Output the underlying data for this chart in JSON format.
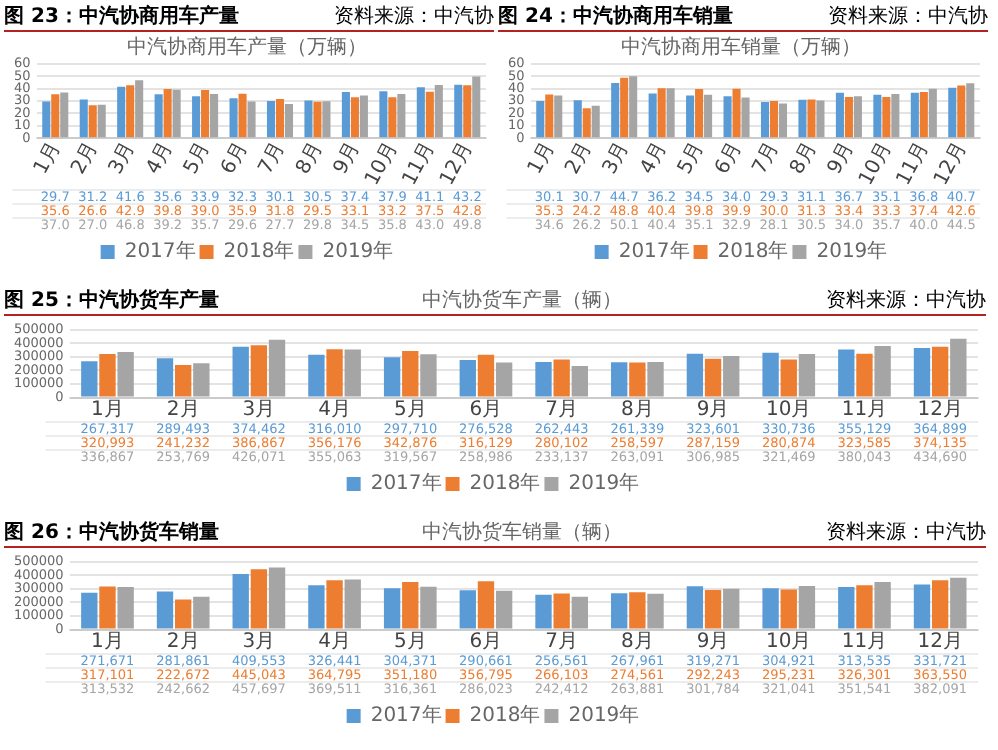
{
  "chart_data": [
    {
      "type": "bar",
      "title": "图 23：中汽协商用车产量",
      "subtitle": "中汽协商用车产量（万辆）",
      "categories": [
        "1月",
        "2月",
        "3月",
        "4月",
        "5月",
        "6月",
        "7月",
        "8月",
        "9月",
        "10月",
        "11月",
        "12月"
      ],
      "series": [
        {
          "name": "2017年",
          "color": "#5b9bd5",
          "values": [
            29.7,
            31.2,
            41.6,
            35.6,
            33.9,
            32.3,
            30.1,
            30.5,
            37.4,
            37.9,
            41.1,
            43.2
          ],
          "value_labels": [
            "29.7",
            "31.2",
            "41.6",
            "35.6",
            "33.9",
            "32.3",
            "30.1",
            "30.5",
            "37.4",
            "37.9",
            "41.1",
            "43.2"
          ]
        },
        {
          "name": "2018年",
          "color": "#ed7d31",
          "values": [
            35.6,
            26.6,
            42.9,
            39.8,
            39.0,
            35.9,
            31.8,
            29.5,
            33.1,
            33.2,
            37.5,
            42.8
          ],
          "value_labels": [
            "35.6",
            "26.6",
            "42.9",
            "39.8",
            "39.0",
            "35.9",
            "31.8",
            "29.5",
            "33.1",
            "33.2",
            "37.5",
            "42.8"
          ]
        },
        {
          "name": "2019年",
          "color": "#a5a5a5",
          "values": [
            37.0,
            27.0,
            46.8,
            39.2,
            35.7,
            29.6,
            27.7,
            29.8,
            34.5,
            35.8,
            43.0,
            49.8
          ],
          "value_labels": [
            "37.0",
            "27.0",
            "46.8",
            "39.2",
            "35.7",
            "29.6",
            "27.7",
            "29.8",
            "34.5",
            "35.8",
            "43.0",
            "49.8"
          ]
        }
      ],
      "ylim": [
        0,
        60
      ],
      "yticks": [
        0,
        10,
        20,
        30,
        40,
        50,
        60
      ],
      "grid": "y",
      "legend": "bottom",
      "annotations": [
        "资料来源：中汽协"
      ]
    },
    {
      "type": "bar",
      "title": "图 24：中汽协商用车销量",
      "subtitle": "中汽协商用车销量（万辆）",
      "categories": [
        "1月",
        "2月",
        "3月",
        "4月",
        "5月",
        "6月",
        "7月",
        "8月",
        "9月",
        "10月",
        "11月",
        "12月"
      ],
      "series": [
        {
          "name": "2017年",
          "color": "#5b9bd5",
          "values": [
            30.1,
            30.7,
            44.7,
            36.2,
            34.5,
            34.0,
            29.3,
            31.1,
            36.7,
            35.1,
            36.8,
            40.7
          ],
          "value_labels": [
            "30.1",
            "30.7",
            "44.7",
            "36.2",
            "34.5",
            "34.0",
            "29.3",
            "31.1",
            "36.7",
            "35.1",
            "36.8",
            "40.7"
          ]
        },
        {
          "name": "2018年",
          "color": "#ed7d31",
          "values": [
            35.3,
            24.2,
            48.8,
            40.4,
            39.8,
            39.9,
            30.0,
            31.3,
            33.4,
            33.3,
            37.4,
            42.6
          ],
          "value_labels": [
            "35.3",
            "24.2",
            "48.8",
            "40.4",
            "39.8",
            "39.9",
            "30.0",
            "31.3",
            "33.4",
            "33.3",
            "37.4",
            "42.6"
          ]
        },
        {
          "name": "2019年",
          "color": "#a5a5a5",
          "values": [
            34.6,
            26.2,
            50.1,
            40.4,
            35.1,
            32.9,
            28.1,
            30.5,
            34.0,
            35.7,
            40.0,
            44.5
          ],
          "value_labels": [
            "34.6",
            "26.2",
            "50.1",
            "40.4",
            "35.1",
            "32.9",
            "28.1",
            "30.5",
            "34.0",
            "35.7",
            "40.0",
            "44.5"
          ]
        }
      ],
      "ylim": [
        0,
        60
      ],
      "yticks": [
        0,
        10,
        20,
        30,
        40,
        50,
        60
      ],
      "grid": "y",
      "legend": "bottom",
      "annotations": [
        "资料来源：中汽协"
      ]
    },
    {
      "type": "bar",
      "title": "图 25：中汽协货车产量",
      "subtitle": "中汽协货车产量（辆）",
      "categories": [
        "1月",
        "2月",
        "3月",
        "4月",
        "5月",
        "6月",
        "7月",
        "8月",
        "9月",
        "10月",
        "11月",
        "12月"
      ],
      "series": [
        {
          "name": "2017年",
          "color": "#5b9bd5",
          "values": [
            267317,
            289493,
            374462,
            316010,
            297710,
            276528,
            262443,
            261339,
            323601,
            330736,
            355129,
            364899
          ],
          "value_labels": [
            "267,317",
            "289,493",
            "374,462",
            "316,010",
            "297,710",
            "276,528",
            "262,443",
            "261,339",
            "323,601",
            "330,736",
            "355,129",
            "364,899"
          ]
        },
        {
          "name": "2018年",
          "color": "#ed7d31",
          "values": [
            320993,
            241232,
            386867,
            356176,
            342876,
            316129,
            280102,
            258597,
            287159,
            280874,
            323585,
            374135
          ],
          "value_labels": [
            "320,993",
            "241,232",
            "386,867",
            "356,176",
            "342,876",
            "316,129",
            "280,102",
            "258,597",
            "287,159",
            "280,874",
            "323,585",
            "374,135"
          ]
        },
        {
          "name": "2019年",
          "color": "#a5a5a5",
          "values": [
            336867,
            253769,
            426071,
            355063,
            319567,
            258986,
            233137,
            263091,
            306985,
            321469,
            380043,
            434690
          ],
          "value_labels": [
            "336,867",
            "253,769",
            "426,071",
            "355,063",
            "319,567",
            "258,986",
            "233,137",
            "263,091",
            "306,985",
            "321,469",
            "380,043",
            "434,690"
          ]
        }
      ],
      "ylim": [
        0,
        500000
      ],
      "yticks": [
        0,
        100000,
        200000,
        300000,
        400000,
        500000
      ],
      "grid": "y",
      "legend": "bottom",
      "annotations": [
        "资料来源：中汽协"
      ]
    },
    {
      "type": "bar",
      "title": "图 26：中汽协货车销量",
      "subtitle": "中汽协货车销量（辆）",
      "categories": [
        "1月",
        "2月",
        "3月",
        "4月",
        "5月",
        "6月",
        "7月",
        "8月",
        "9月",
        "10月",
        "11月",
        "12月"
      ],
      "series": [
        {
          "name": "2017年",
          "color": "#5b9bd5",
          "values": [
            271671,
            281861,
            409553,
            326441,
            304371,
            290661,
            256561,
            267961,
            319271,
            304921,
            313535,
            331721
          ],
          "value_labels": [
            "271,671",
            "281,861",
            "409,553",
            "326,441",
            "304,371",
            "290,661",
            "256,561",
            "267,961",
            "319,271",
            "304,921",
            "313,535",
            "331,721"
          ]
        },
        {
          "name": "2018年",
          "color": "#ed7d31",
          "values": [
            317101,
            222672,
            445043,
            364795,
            351180,
            356795,
            266103,
            274561,
            292243,
            295231,
            326301,
            363550
          ],
          "value_labels": [
            "317,101",
            "222,672",
            "445,043",
            "364,795",
            "351,180",
            "356,795",
            "266,103",
            "274,561",
            "292,243",
            "295,231",
            "326,301",
            "363,550"
          ]
        },
        {
          "name": "2019年",
          "color": "#a5a5a5",
          "values": [
            313532,
            242662,
            457697,
            369511,
            316361,
            286023,
            242412,
            263881,
            301784,
            321041,
            351541,
            382091
          ],
          "value_labels": [
            "313,532",
            "242,662",
            "457,697",
            "369,511",
            "316,361",
            "286,023",
            "242,412",
            "263,881",
            "301,784",
            "321,041",
            "351,541",
            "382,091"
          ]
        }
      ],
      "ylim": [
        0,
        500000
      ],
      "yticks": [
        0,
        100000,
        200000,
        300000,
        400000,
        500000
      ],
      "grid": "y",
      "legend": "bottom",
      "annotations": [
        "资料来源：中汽协"
      ]
    }
  ]
}
